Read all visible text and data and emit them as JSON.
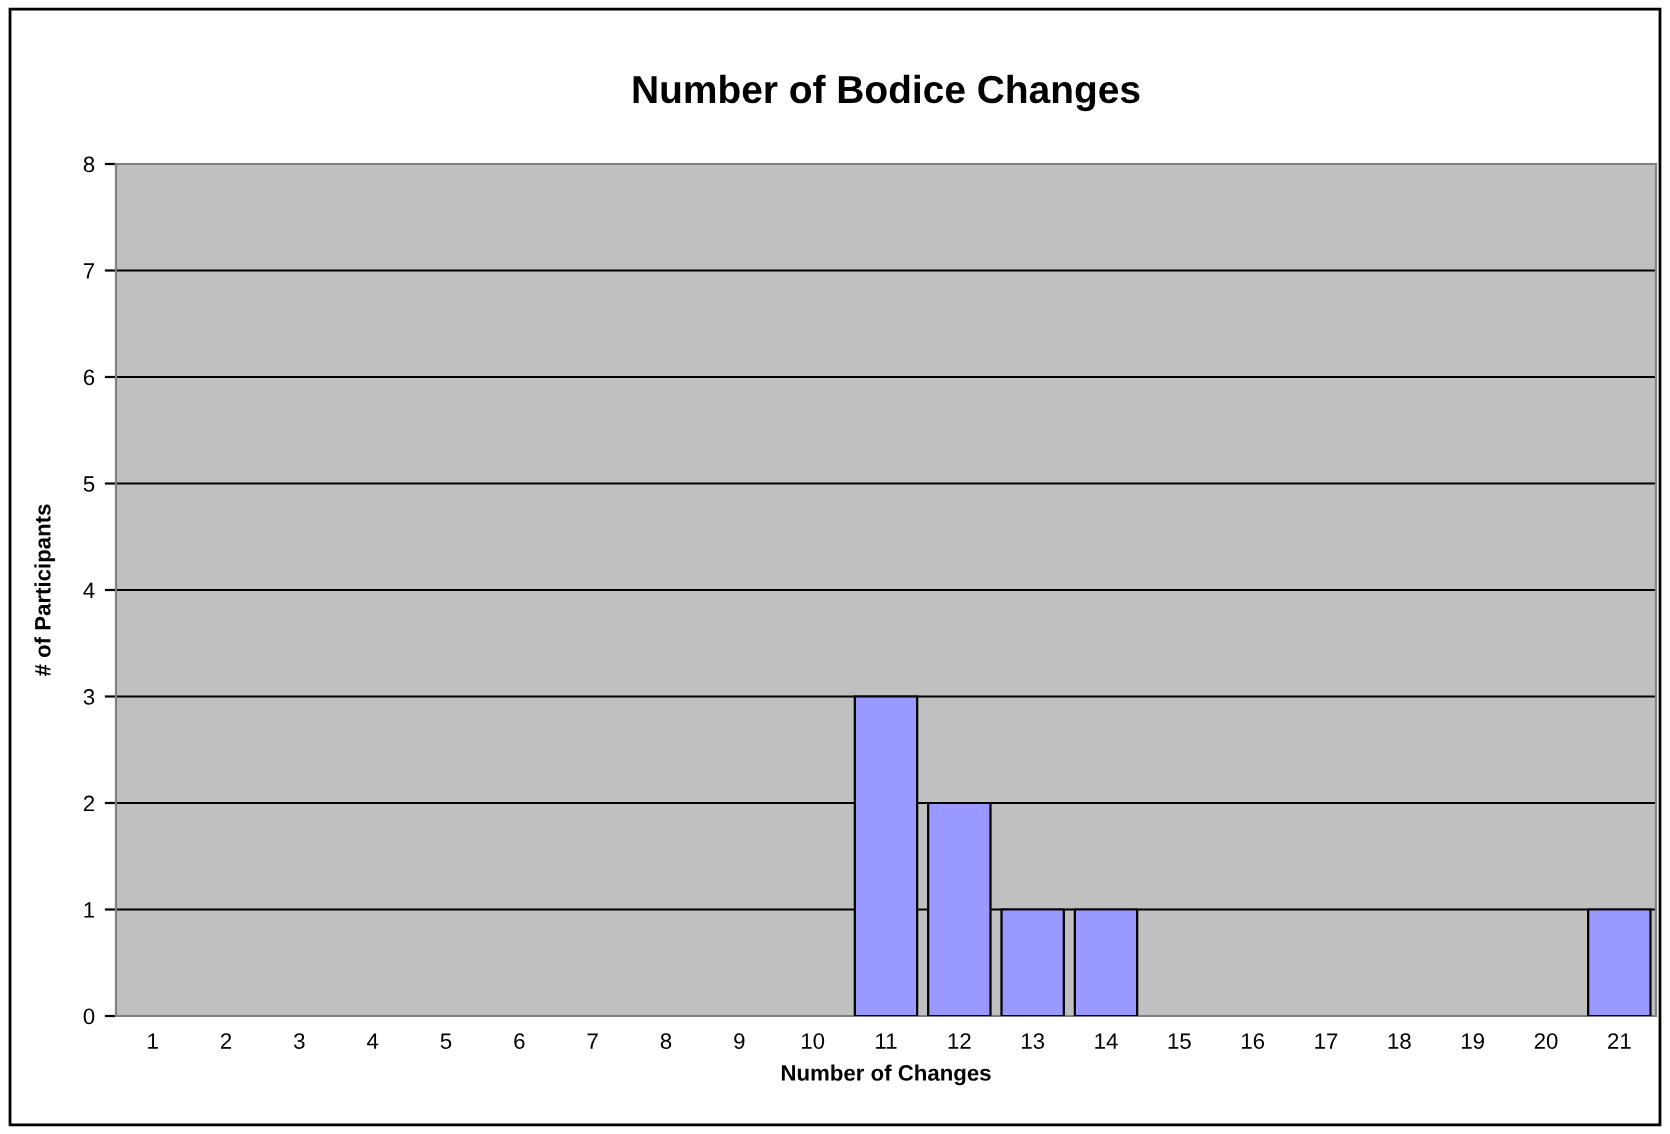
{
  "chart_data": {
    "type": "bar",
    "title": "Number of Bodice Changes",
    "xlabel": "Number of Changes",
    "ylabel": "# of Participants",
    "categories": [
      "1",
      "2",
      "3",
      "4",
      "5",
      "6",
      "7",
      "8",
      "9",
      "10",
      "11",
      "12",
      "13",
      "14",
      "15",
      "16",
      "17",
      "18",
      "19",
      "20",
      "21"
    ],
    "values": [
      0,
      0,
      0,
      0,
      0,
      0,
      0,
      0,
      0,
      0,
      3,
      2,
      1,
      1,
      0,
      0,
      0,
      0,
      0,
      0,
      1
    ],
    "color": "#9999ff",
    "ylim": [
      0,
      8
    ],
    "yticks": [
      0,
      1,
      2,
      3,
      4,
      5,
      6,
      7,
      8
    ],
    "grid": "y",
    "legend": false
  }
}
